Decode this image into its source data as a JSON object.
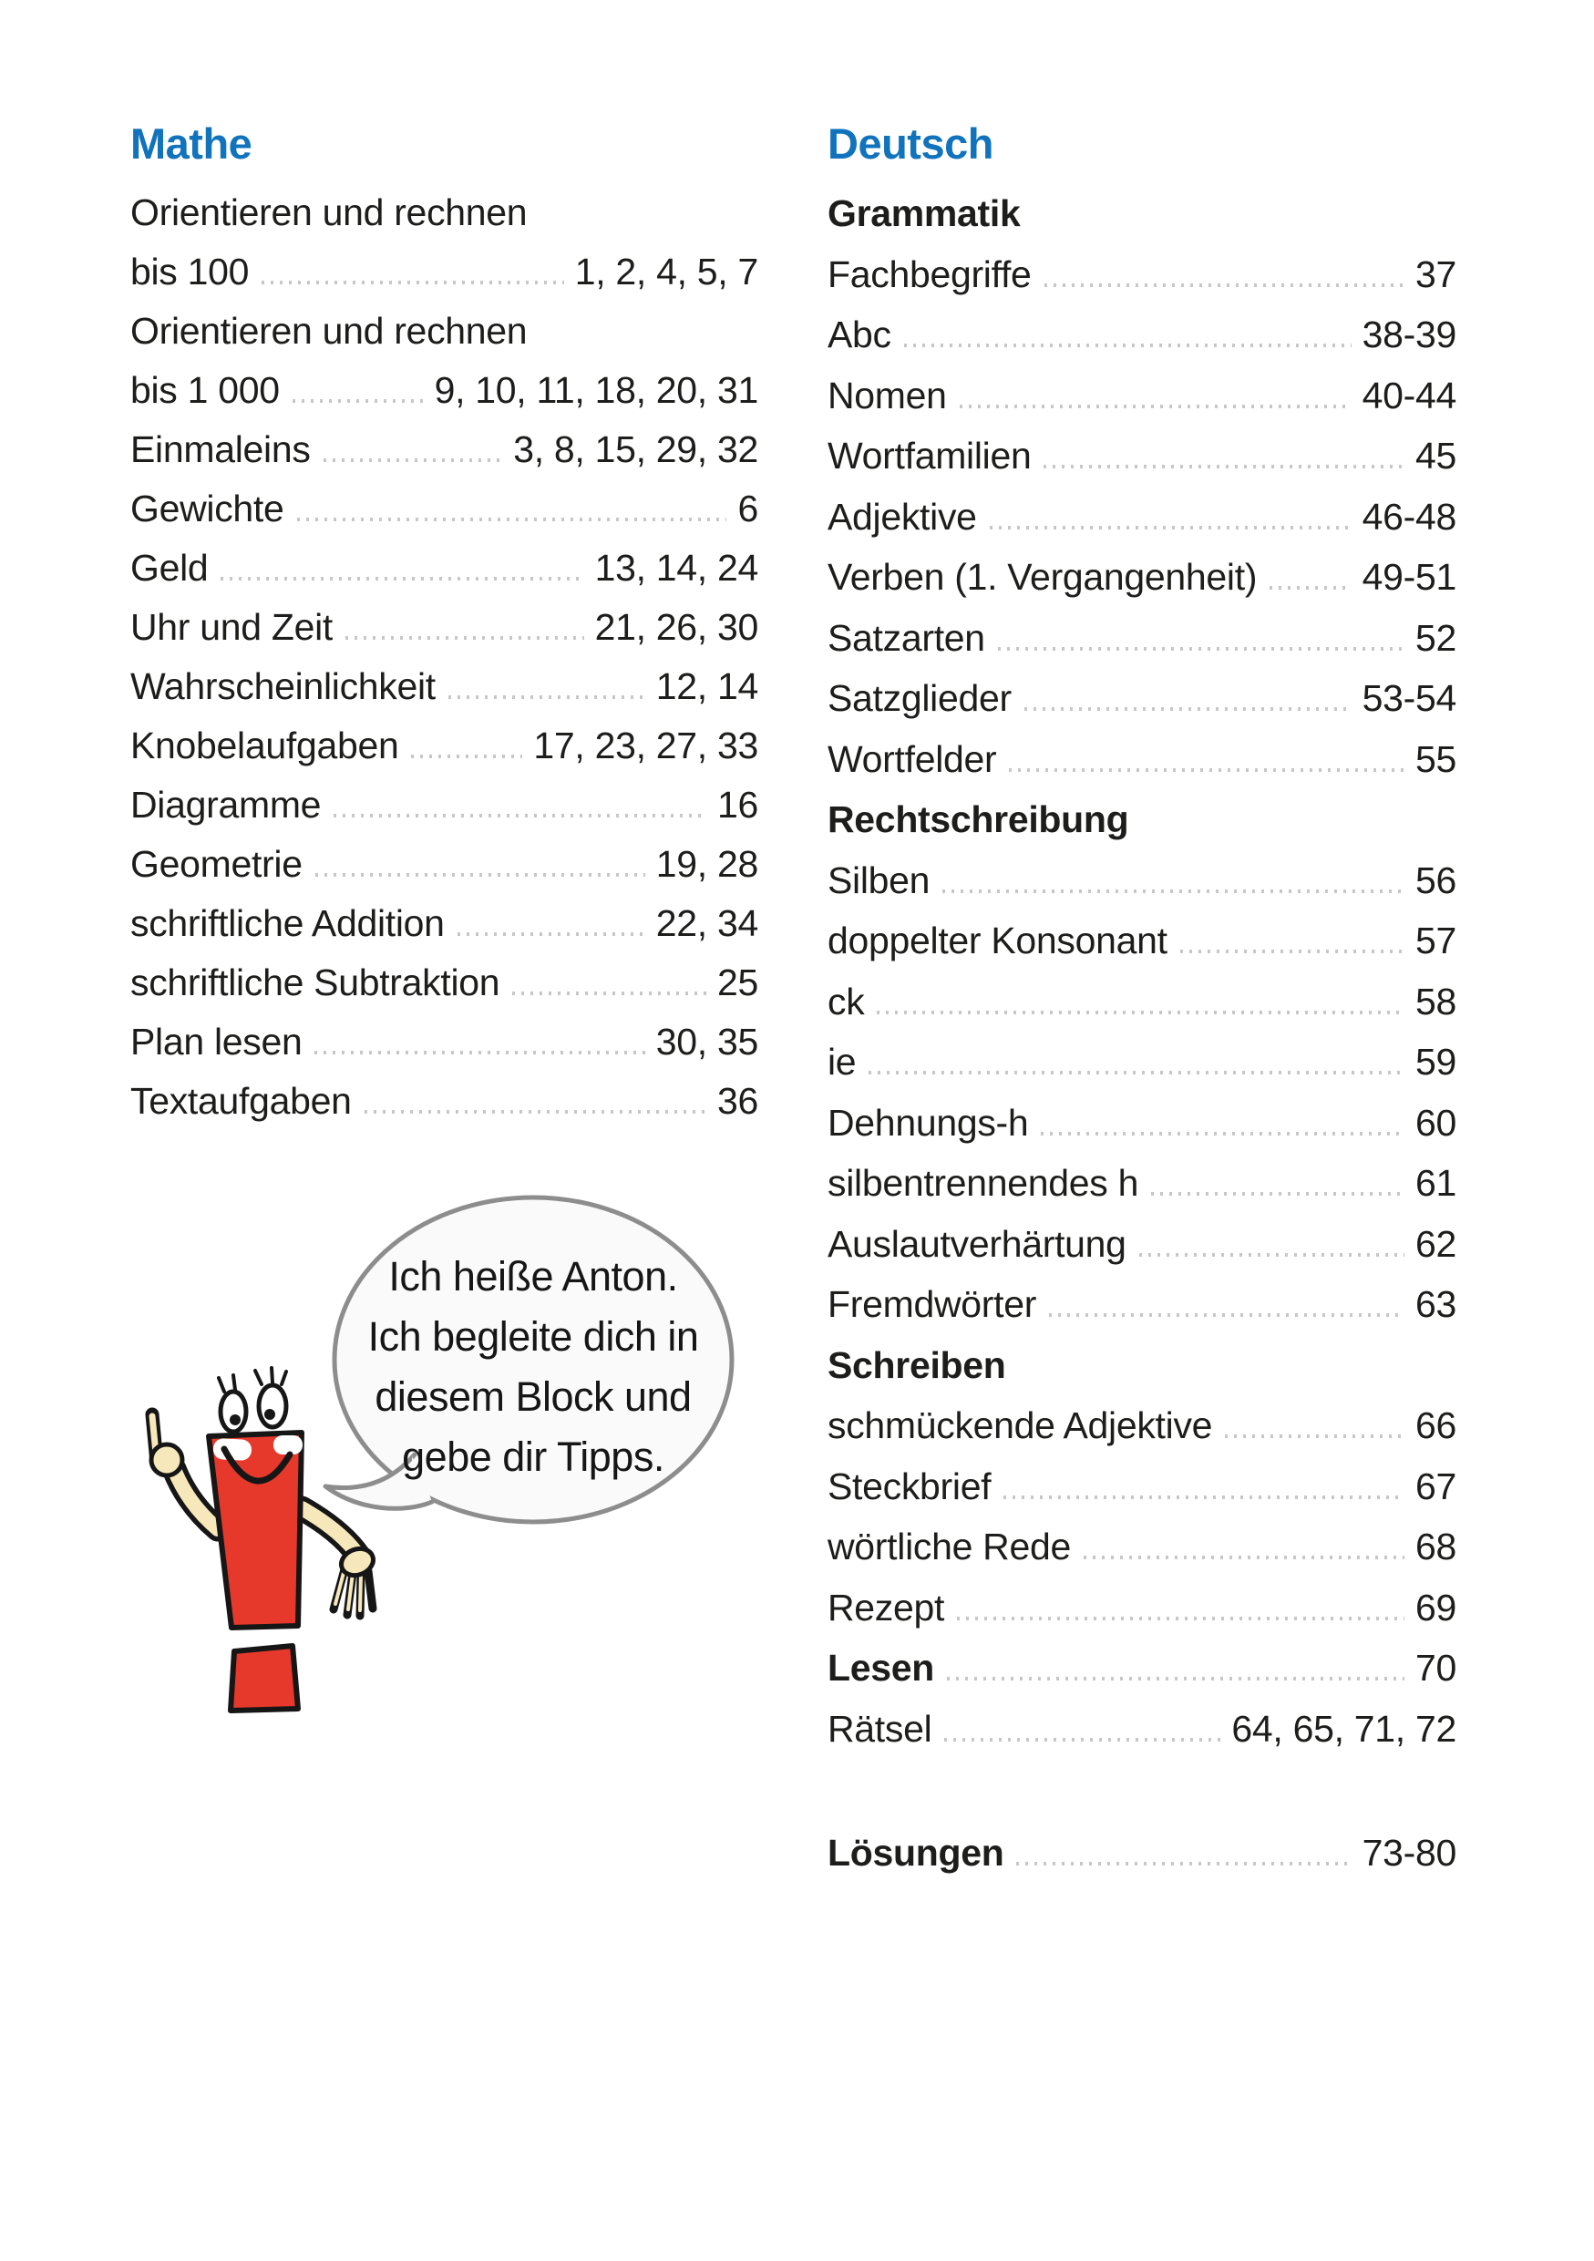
{
  "left_column": {
    "heading": "Mathe",
    "entries": [
      {
        "line1": "Orientieren und rechnen",
        "label": "bis 100",
        "pages": "1, 2, 4, 5, 7"
      },
      {
        "line1": "Orientieren und rechnen",
        "label": "bis 1 000",
        "pages": "9, 10, 11, 18, 20, 31"
      },
      {
        "label": "Einmaleins",
        "pages": "3, 8, 15, 29, 32"
      },
      {
        "label": "Gewichte",
        "pages": "6"
      },
      {
        "label": "Geld",
        "pages": "13, 14, 24"
      },
      {
        "label": "Uhr und Zeit",
        "pages": "21, 26, 30"
      },
      {
        "label": "Wahrscheinlichkeit",
        "pages": "12, 14"
      },
      {
        "label": "Knobelaufgaben",
        "pages": "17, 23, 27, 33"
      },
      {
        "label": "Diagramme",
        "pages": "16"
      },
      {
        "label": "Geometrie",
        "pages": "19, 28"
      },
      {
        "label": "schriftliche Addition",
        "pages": "22, 34"
      },
      {
        "label": "schriftliche Subtraktion",
        "pages": "25"
      },
      {
        "label": "Plan lesen",
        "pages": "30, 35"
      },
      {
        "label": "Textaufgaben",
        "pages": "36"
      }
    ]
  },
  "right_column": {
    "heading": "Deutsch",
    "entries": [
      {
        "label": "Grammatik",
        "bold": true
      },
      {
        "label": "Fachbegriffe",
        "pages": "37"
      },
      {
        "label": "Abc",
        "pages": "38-39"
      },
      {
        "label": "Nomen",
        "pages": "40-44"
      },
      {
        "label": "Wortfamilien",
        "pages": "45"
      },
      {
        "label": "Adjektive",
        "pages": "46-48"
      },
      {
        "label": "Verben (1. Vergangenheit)",
        "pages": "49-51"
      },
      {
        "label": "Satzarten",
        "pages": "52"
      },
      {
        "label": "Satzglieder",
        "pages": "53-54"
      },
      {
        "label": "Wortfelder",
        "pages": "55"
      },
      {
        "label": "Rechtschreibung",
        "bold": true
      },
      {
        "label": "Silben",
        "pages": "56"
      },
      {
        "label": "doppelter Konsonant",
        "pages": "57"
      },
      {
        "label": "ck",
        "pages": "58"
      },
      {
        "label": "ie",
        "pages": "59"
      },
      {
        "label": "Dehnungs-h",
        "pages": "60"
      },
      {
        "label": "silbentrennendes h",
        "pages": "61"
      },
      {
        "label": "Auslautverhärtung",
        "pages": "62"
      },
      {
        "label": "Fremdwörter",
        "pages": "63"
      },
      {
        "label": "Schreiben",
        "bold": true
      },
      {
        "label": "schmückende Adjektive",
        "pages": "66"
      },
      {
        "label": "Steckbrief",
        "pages": "67"
      },
      {
        "label": "wörtliche Rede",
        "pages": "68"
      },
      {
        "label": "Rezept",
        "pages": "69"
      },
      {
        "label": "Lesen",
        "bold": true,
        "pages": "70"
      },
      {
        "label": "Rätsel",
        "pages": "64, 65, 71, 72"
      },
      {
        "label": "Lösungen",
        "bold": true,
        "pages": "73-80",
        "gap_before": true
      }
    ]
  },
  "mascot": {
    "character": "exclamation-mark-mascot",
    "speech_lines": [
      "Ich heiße Anton.",
      "Ich begleite dich in",
      "diesem Block und",
      "gebe dir Tipps."
    ]
  },
  "colors": {
    "accent_blue": "#1173bc",
    "mascot_red": "#e6392b",
    "arm_cream": "#f6e8bb",
    "bubble_border": "#8d8d8d",
    "bubble_fill": "#fafafa",
    "leader_dot": "#c7c7c7",
    "text": "#1d1d1b"
  }
}
